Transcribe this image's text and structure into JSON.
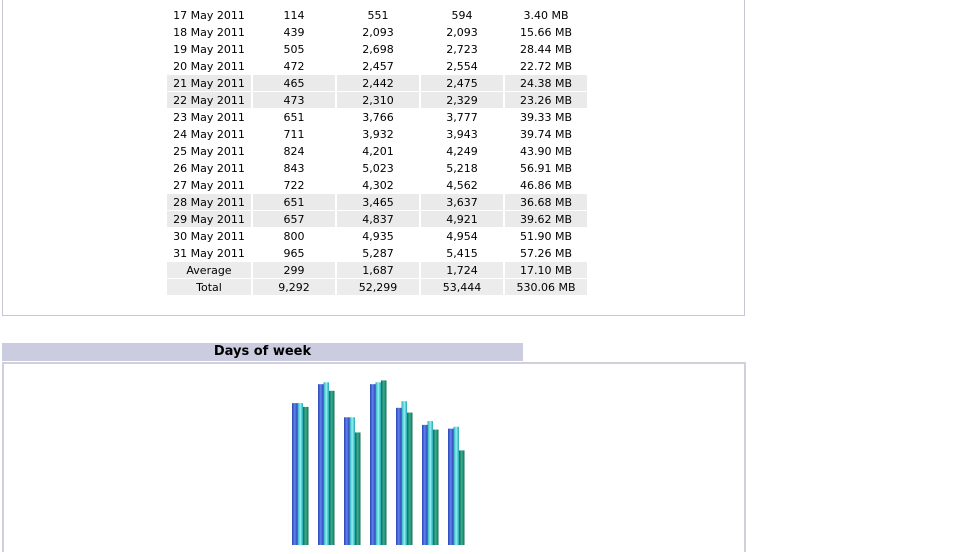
{
  "monthly_table": {
    "rows": [
      {
        "date": "17 May 2011",
        "c1": "114",
        "c2": "551",
        "c3": "594",
        "c4": "3.40 MB",
        "shaded": false
      },
      {
        "date": "18 May 2011",
        "c1": "439",
        "c2": "2,093",
        "c3": "2,093",
        "c4": "15.66 MB",
        "shaded": false
      },
      {
        "date": "19 May 2011",
        "c1": "505",
        "c2": "2,698",
        "c3": "2,723",
        "c4": "28.44 MB",
        "shaded": false
      },
      {
        "date": "20 May 2011",
        "c1": "472",
        "c2": "2,457",
        "c3": "2,554",
        "c4": "22.72 MB",
        "shaded": false
      },
      {
        "date": "21 May 2011",
        "c1": "465",
        "c2": "2,442",
        "c3": "2,475",
        "c4": "24.38 MB",
        "shaded": true
      },
      {
        "date": "22 May 2011",
        "c1": "473",
        "c2": "2,310",
        "c3": "2,329",
        "c4": "23.26 MB",
        "shaded": true
      },
      {
        "date": "23 May 2011",
        "c1": "651",
        "c2": "3,766",
        "c3": "3,777",
        "c4": "39.33 MB",
        "shaded": false
      },
      {
        "date": "24 May 2011",
        "c1": "711",
        "c2": "3,932",
        "c3": "3,943",
        "c4": "39.74 MB",
        "shaded": false
      },
      {
        "date": "25 May 2011",
        "c1": "824",
        "c2": "4,201",
        "c3": "4,249",
        "c4": "43.90 MB",
        "shaded": false
      },
      {
        "date": "26 May 2011",
        "c1": "843",
        "c2": "5,023",
        "c3": "5,218",
        "c4": "56.91 MB",
        "shaded": false
      },
      {
        "date": "27 May 2011",
        "c1": "722",
        "c2": "4,302",
        "c3": "4,562",
        "c4": "46.86 MB",
        "shaded": false
      },
      {
        "date": "28 May 2011",
        "c1": "651",
        "c2": "3,465",
        "c3": "3,637",
        "c4": "36.68 MB",
        "shaded": true
      },
      {
        "date": "29 May 2011",
        "c1": "657",
        "c2": "4,837",
        "c3": "4,921",
        "c4": "39.62 MB",
        "shaded": true
      },
      {
        "date": "30 May 2011",
        "c1": "800",
        "c2": "4,935",
        "c3": "4,954",
        "c4": "51.90 MB",
        "shaded": false
      },
      {
        "date": "31 May 2011",
        "c1": "965",
        "c2": "5,287",
        "c3": "5,415",
        "c4": "57.26 MB",
        "shaded": false
      }
    ],
    "average": {
      "label": "Average",
      "c1": "299",
      "c2": "1,687",
      "c3": "1,724",
      "c4": "17.10 MB"
    },
    "total": {
      "label": "Total",
      "c1": "9,292",
      "c2": "52,299",
      "c3": "53,444",
      "c4": "530.06 MB"
    }
  },
  "days_of_week": {
    "title": "Days of week"
  },
  "chart_data": {
    "type": "bar",
    "categories": [
      "",
      "",
      "",
      "",
      "",
      "",
      ""
    ],
    "series": [
      {
        "color": "#3b5fd6",
        "values": [
          150,
          170,
          135,
          170,
          145,
          127,
          123
        ]
      },
      {
        "color": "#3ad0d6",
        "values": [
          150,
          172,
          135,
          172,
          152,
          131,
          125
        ]
      },
      {
        "color": "#1f8a6e",
        "values": [
          146,
          163,
          119,
          174,
          140,
          122,
          100
        ]
      }
    ],
    "ylim": [
      0,
      185
    ]
  }
}
